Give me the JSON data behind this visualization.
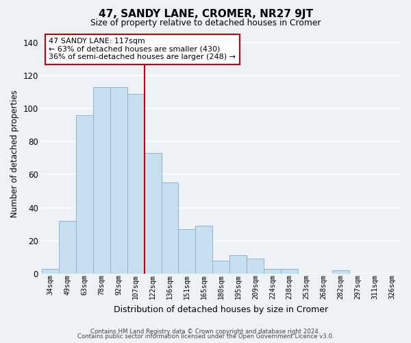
{
  "title": "47, SANDY LANE, CROMER, NR27 9JT",
  "subtitle": "Size of property relative to detached houses in Cromer",
  "xlabel": "Distribution of detached houses by size in Cromer",
  "ylabel": "Number of detached properties",
  "bar_labels": [
    "34sqm",
    "49sqm",
    "63sqm",
    "78sqm",
    "92sqm",
    "107sqm",
    "122sqm",
    "136sqm",
    "151sqm",
    "165sqm",
    "180sqm",
    "195sqm",
    "209sqm",
    "224sqm",
    "238sqm",
    "253sqm",
    "268sqm",
    "282sqm",
    "297sqm",
    "311sqm",
    "326sqm"
  ],
  "bar_values": [
    3,
    32,
    96,
    113,
    113,
    109,
    73,
    55,
    27,
    29,
    8,
    11,
    9,
    3,
    3,
    0,
    0,
    2,
    0,
    0,
    0
  ],
  "bar_color": "#c8dff0",
  "bar_edge_color": "#8ab4d4",
  "vline_x": 5.5,
  "vline_color": "#cc0000",
  "annotation_title": "47 SANDY LANE: 117sqm",
  "annotation_line1": "← 63% of detached houses are smaller (430)",
  "annotation_line2": "36% of semi-detached houses are larger (248) →",
  "annotation_box_edge": "#cc0000",
  "ylim": [
    0,
    145
  ],
  "yticks": [
    0,
    20,
    40,
    60,
    80,
    100,
    120,
    140
  ],
  "footer_line1": "Contains HM Land Registry data © Crown copyright and database right 2024.",
  "footer_line2": "Contains public sector information licensed under the Open Government Licence v3.0.",
  "background_color": "#eef2f7",
  "grid_color": "#ffffff"
}
